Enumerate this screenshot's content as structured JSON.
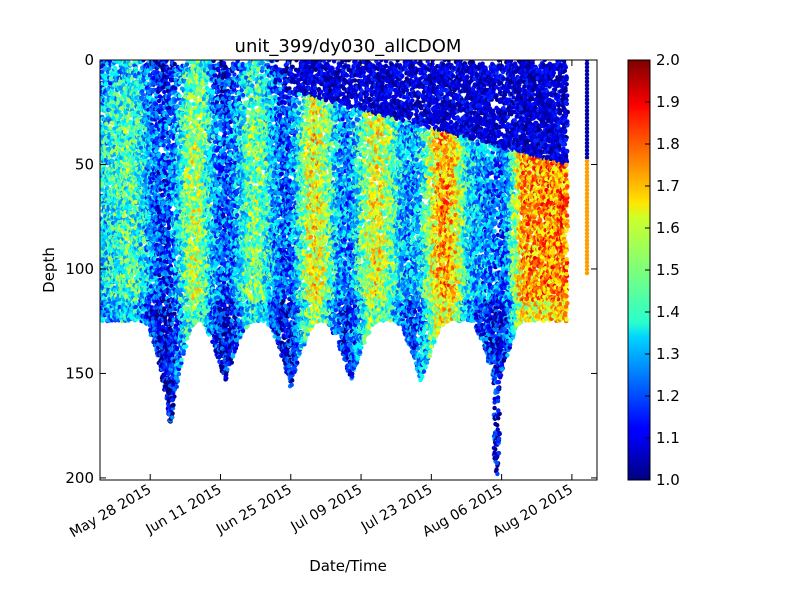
{
  "chart_data": {
    "type": "scatter",
    "title": "unit_399/dy030_allCDOM",
    "xlabel": "Date/Time",
    "ylabel": "Depth",
    "x_type": "date",
    "xlim": [
      "2015-05-18",
      "2015-08-25"
    ],
    "ylim": [
      201,
      0
    ],
    "y_inverted": true,
    "x_ticks": [
      {
        "date": "2015-05-28",
        "label": "May 28 2015"
      },
      {
        "date": "2015-06-11",
        "label": "Jun 11 2015"
      },
      {
        "date": "2015-06-25",
        "label": "Jun 25 2015"
      },
      {
        "date": "2015-07-09",
        "label": "Jul 09 2015"
      },
      {
        "date": "2015-07-23",
        "label": "Jul 23 2015"
      },
      {
        "date": "2015-08-06",
        "label": "Aug 06 2015"
      },
      {
        "date": "2015-08-20",
        "label": "Aug 20 2015"
      }
    ],
    "y_ticks": [
      0,
      50,
      100,
      150,
      200
    ],
    "grid": false,
    "colormap": "jet",
    "color_range": [
      1.0,
      2.0
    ],
    "colorbar_ticks": [
      "1.0",
      "1.1",
      "1.2",
      "1.3",
      "1.4",
      "1.5",
      "1.6",
      "1.7",
      "1.8",
      "1.9",
      "2.0"
    ],
    "dives": [
      {
        "date": "2015-06-01",
        "max_depth": 175
      },
      {
        "date": "2015-06-12",
        "max_depth": 155
      },
      {
        "date": "2015-06-25",
        "max_depth": 157
      },
      {
        "date": "2015-07-07",
        "max_depth": 155
      },
      {
        "date": "2015-07-21",
        "max_depth": 155
      },
      {
        "date": "2015-08-05",
        "max_depth": 201
      }
    ],
    "profile_max_depth_shallow": 125,
    "data_end": "2015-08-19",
    "late_point": {
      "date": "2015-08-23",
      "depth_range": [
        0,
        102
      ]
    },
    "surface_low_layer": {
      "start": "2015-06-25",
      "end": "2015-08-19",
      "depth_start": 15,
      "depth_end": 50,
      "value": 1.05
    },
    "bands": [
      {
        "date": "2015-05-18",
        "value": 1.35
      },
      {
        "date": "2015-05-24",
        "value": 1.45
      },
      {
        "date": "2015-05-31",
        "value": 1.18
      },
      {
        "date": "2015-06-06",
        "value": 1.55
      },
      {
        "date": "2015-06-12",
        "value": 1.2
      },
      {
        "date": "2015-06-18",
        "value": 1.5
      },
      {
        "date": "2015-06-24",
        "value": 1.2
      },
      {
        "date": "2015-06-30",
        "value": 1.62
      },
      {
        "date": "2015-07-06",
        "value": 1.25
      },
      {
        "date": "2015-07-12",
        "value": 1.6
      },
      {
        "date": "2015-07-19",
        "value": 1.28
      },
      {
        "date": "2015-07-26",
        "value": 1.72
      },
      {
        "date": "2015-08-01",
        "value": 1.3
      },
      {
        "date": "2015-08-06",
        "value": 1.22
      },
      {
        "date": "2015-08-11",
        "value": 1.72
      },
      {
        "date": "2015-08-19",
        "value": 1.75
      }
    ]
  }
}
